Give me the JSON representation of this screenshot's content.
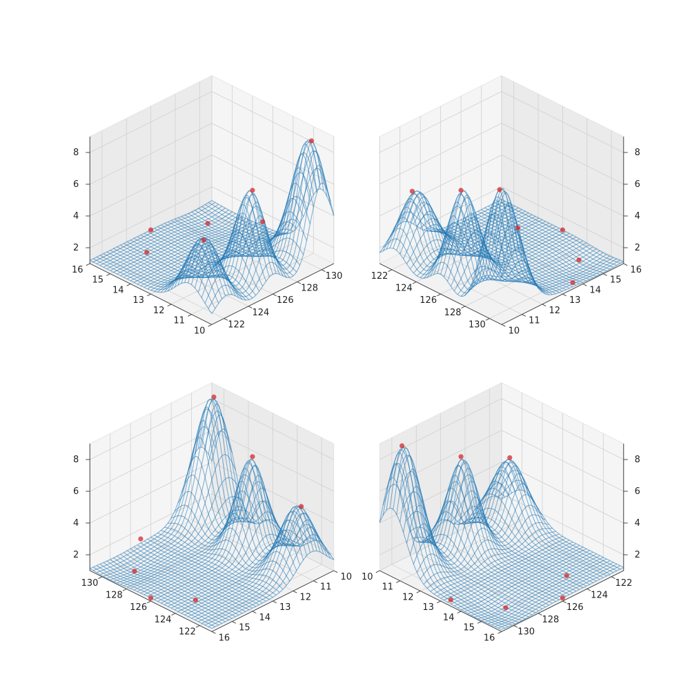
{
  "chart_data": [
    {
      "type": "surface3d",
      "panel": "top-left",
      "x_label": "",
      "y_label": "",
      "z_label": "",
      "x_ticks": [
        122,
        124,
        126,
        128,
        130
      ],
      "xlim": [
        121,
        131
      ],
      "y_ticks": [
        10,
        11,
        12,
        13,
        14,
        15,
        16
      ],
      "ylim": [
        10,
        16
      ],
      "z_ticks": [
        2,
        4,
        6,
        8
      ],
      "zlim": [
        1,
        9
      ],
      "azim": -135,
      "elev": 30,
      "series": [
        {
          "kind": "wireframe surface",
          "color": "#1f77b4"
        },
        {
          "kind": "scatter",
          "color": "#d62728",
          "points": [
            {
              "x": 130,
              "y": 10.5,
              "z": 8.8
            },
            {
              "x": 126,
              "y": 11,
              "z": 6.9
            },
            {
              "x": 122,
              "y": 11,
              "z": 5.3
            },
            {
              "x": 131,
              "y": 13.5,
              "z": 1.4
            },
            {
              "x": 129,
              "y": 15,
              "z": 1.1
            },
            {
              "x": 124,
              "y": 15,
              "z": 1.2
            },
            {
              "x": 126,
              "y": 16,
              "z": 1.2
            }
          ]
        }
      ]
    },
    {
      "type": "surface3d",
      "panel": "top-right",
      "x_label": "",
      "y_label": "",
      "z_label": "",
      "x_ticks": [
        122,
        124,
        126,
        128,
        130
      ],
      "xlim": [
        121,
        131
      ],
      "y_ticks": [
        10,
        11,
        12,
        13,
        14,
        15,
        16
      ],
      "ylim": [
        10,
        16
      ],
      "z_ticks": [
        2,
        4,
        6,
        8
      ],
      "zlim": [
        1,
        9
      ],
      "azim": -45,
      "elev": 30,
      "series": [
        {
          "kind": "wireframe surface",
          "color": "#1f77b4"
        },
        {
          "kind": "scatter",
          "color": "#d62728",
          "points": [
            {
              "x": 130,
              "y": 10.5,
              "z": 8.8
            },
            {
              "x": 126,
              "y": 11,
              "z": 6.9
            },
            {
              "x": 122,
              "y": 11,
              "z": 5.3
            },
            {
              "x": 131,
              "y": 13.5,
              "z": 1.4
            },
            {
              "x": 129,
              "y": 15,
              "z": 1.1
            },
            {
              "x": 124,
              "y": 15,
              "z": 1.2
            },
            {
              "x": 126,
              "y": 16,
              "z": 1.2
            }
          ]
        }
      ]
    },
    {
      "type": "surface3d",
      "panel": "bottom-left",
      "x_label": "",
      "y_label": "",
      "z_label": "",
      "x_ticks": [
        122,
        124,
        126,
        128,
        130
      ],
      "xlim": [
        121,
        131
      ],
      "y_ticks": [
        10,
        11,
        12,
        13,
        14,
        15,
        16
      ],
      "ylim": [
        10,
        16
      ],
      "z_ticks": [
        2,
        4,
        6,
        8
      ],
      "zlim": [
        1,
        9
      ],
      "azim": 135,
      "elev": 30,
      "series": [
        {
          "kind": "wireframe surface",
          "color": "#1f77b4"
        },
        {
          "kind": "scatter",
          "color": "#d62728",
          "points": [
            {
              "x": 130,
              "y": 10.5,
              "z": 8.8
            },
            {
              "x": 126,
              "y": 11,
              "z": 6.9
            },
            {
              "x": 122,
              "y": 11,
              "z": 5.3
            },
            {
              "x": 131,
              "y": 13.5,
              "z": 1.4
            },
            {
              "x": 129,
              "y": 15,
              "z": 1.1
            },
            {
              "x": 124,
              "y": 15,
              "z": 1.2
            },
            {
              "x": 126,
              "y": 16,
              "z": 1.2
            }
          ]
        }
      ]
    },
    {
      "type": "surface3d",
      "panel": "bottom-right",
      "x_label": "",
      "y_label": "",
      "z_label": "",
      "x_ticks": [
        122,
        124,
        126,
        128,
        130
      ],
      "xlim": [
        121,
        131
      ],
      "y_ticks": [
        10,
        11,
        12,
        13,
        14,
        15,
        16
      ],
      "ylim": [
        10,
        16
      ],
      "z_ticks": [
        2,
        4,
        6,
        8
      ],
      "zlim": [
        1,
        9
      ],
      "azim": 45,
      "elev": 30,
      "series": [
        {
          "kind": "wireframe surface",
          "color": "#1f77b4"
        },
        {
          "kind": "scatter",
          "color": "#d62728",
          "points": [
            {
              "x": 130,
              "y": 10.5,
              "z": 8.8
            },
            {
              "x": 126,
              "y": 11,
              "z": 6.9
            },
            {
              "x": 122,
              "y": 11,
              "z": 5.3
            },
            {
              "x": 131,
              "y": 13.5,
              "z": 1.4
            },
            {
              "x": 129,
              "y": 15,
              "z": 1.1
            },
            {
              "x": 124,
              "y": 15,
              "z": 1.2
            },
            {
              "x": 126,
              "y": 16,
              "z": 1.2
            }
          ]
        }
      ]
    }
  ]
}
